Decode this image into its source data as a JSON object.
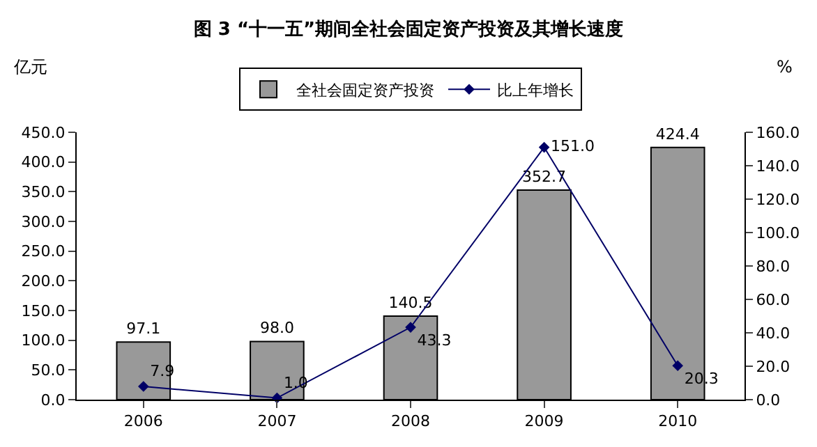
{
  "chart_data": {
    "type": "bar",
    "title": "图 3 “十一五”期间全社会固定资产投资及其增长速度",
    "ylabel": "亿元",
    "y2label": "%",
    "categories": [
      "2006",
      "2007",
      "2008",
      "2009",
      "2010"
    ],
    "series": [
      {
        "name": "全社会固定资产投资",
        "color": "#999999",
        "values": [
          97.1,
          98.0,
          140.5,
          352.7,
          424.4
        ],
        "value_labels": [
          "97.1",
          "98.0",
          "140.5",
          "352.7",
          "424.4"
        ]
      },
      {
        "name": "比上年增长",
        "type": "line",
        "axis": "y2",
        "color": "#000066",
        "marker": "diamond",
        "values": [
          7.9,
          1.0,
          43.3,
          151.0,
          20.3
        ],
        "value_labels": [
          "7.9",
          "1.0",
          "43.3",
          "151.0",
          "20.3"
        ]
      }
    ],
    "ylim": [
      0,
      450
    ],
    "yticks": [
      {
        "value": 0,
        "label": "0.0"
      },
      {
        "value": 50,
        "label": "50.0"
      },
      {
        "value": 100,
        "label": "100.0"
      },
      {
        "value": 150,
        "label": "150.0"
      },
      {
        "value": 200,
        "label": "200.0"
      },
      {
        "value": 250,
        "label": "250.0"
      },
      {
        "value": 300,
        "label": "300.0"
      },
      {
        "value": 350,
        "label": "350.0"
      },
      {
        "value": 400,
        "label": "400.0"
      },
      {
        "value": 450,
        "label": "450.0"
      }
    ],
    "y2lim": [
      0,
      160
    ],
    "y2ticks": [
      {
        "value": 0,
        "label": "0.0"
      },
      {
        "value": 20,
        "label": "20.0"
      },
      {
        "value": 40,
        "label": "40.0"
      },
      {
        "value": 60,
        "label": "60.0"
      },
      {
        "value": 80,
        "label": "80.0"
      },
      {
        "value": 100,
        "label": "100.0"
      },
      {
        "value": 120,
        "label": "120.0"
      },
      {
        "value": 140,
        "label": "140.0"
      },
      {
        "value": 160,
        "label": "160.0"
      }
    ],
    "legend": "top"
  }
}
